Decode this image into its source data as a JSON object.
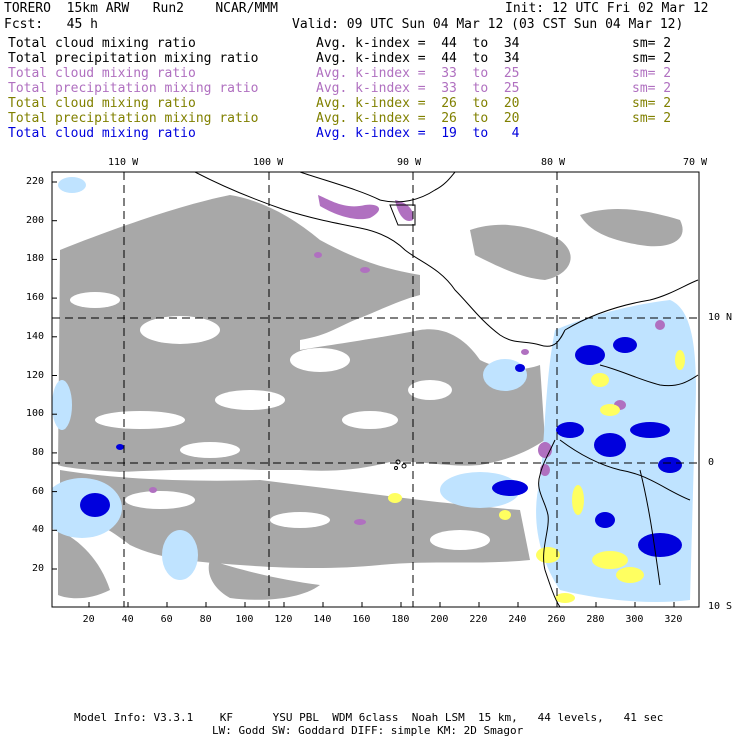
{
  "header": {
    "model": "TORERO  15km ARW   Run2    NCAR/MMM",
    "init": "Init: 12 UTC Fri 02 Mar 12",
    "fcst": "Fcst:   45 h",
    "valid": "Valid: 09 UTC Sun 04 Mar 12 (03 CST Sun 04 Mar 12)"
  },
  "legend": [
    {
      "label": "Total cloud mixing ratio",
      "range": "Avg. k-index =  44  to  34",
      "sm": "sm= 2",
      "color": "#000000"
    },
    {
      "label": "Total precipitation mixing ratio",
      "range": "Avg. k-index =  44  to  34",
      "sm": "sm= 2",
      "color": "#000000"
    },
    {
      "label": "Total cloud mixing ratio",
      "range": "Avg. k-index =  33  to  25",
      "sm": "sm= 2",
      "color": "#b070c0"
    },
    {
      "label": "Total precipitation mixing ratio",
      "range": "Avg. k-index =  33  to  25",
      "sm": "sm= 2",
      "color": "#b070c0"
    },
    {
      "label": "Total cloud mixing ratio",
      "range": "Avg. k-index =  26  to  20",
      "sm": "sm= 2",
      "color": "#808000"
    },
    {
      "label": "Total precipitation mixing ratio",
      "range": "Avg. k-index =  26  to  20",
      "sm": "sm= 2",
      "color": "#808000"
    },
    {
      "label": "Total cloud mixing ratio",
      "range": "Avg. k-index =  19  to   4",
      "sm": "",
      "color": "#0000dd"
    }
  ],
  "map": {
    "lon_labels": [
      "110 W",
      "100 W",
      "90 W",
      "80 W",
      "70 W"
    ],
    "lat_labels": [
      "10 N",
      "0",
      "10 S"
    ],
    "y_grid_labels": [
      "220",
      "200",
      "180",
      "160",
      "140",
      "120",
      "100",
      "80",
      "60",
      "40",
      "20"
    ],
    "x_grid_labels": [
      "20",
      "40",
      "60",
      "80",
      "100",
      "120",
      "140",
      "160",
      "180",
      "200",
      "220",
      "240",
      "260",
      "280",
      "300",
      "320"
    ],
    "colors": {
      "cloud_gray": "#a8a8a8",
      "purple": "#b070c0",
      "yellow": "#ffff60",
      "blue": "#0000dd",
      "light_blue": "#bfe3ff"
    }
  },
  "footer": {
    "line1": "Model Info: V3.3.1    KF      YSU PBL  WDM 6class  Noah LSM  15 km,   44 levels,   41 sec",
    "line2": "LW: Godd SW: Goddard DIFF: simple KM: 2D Smagor"
  }
}
